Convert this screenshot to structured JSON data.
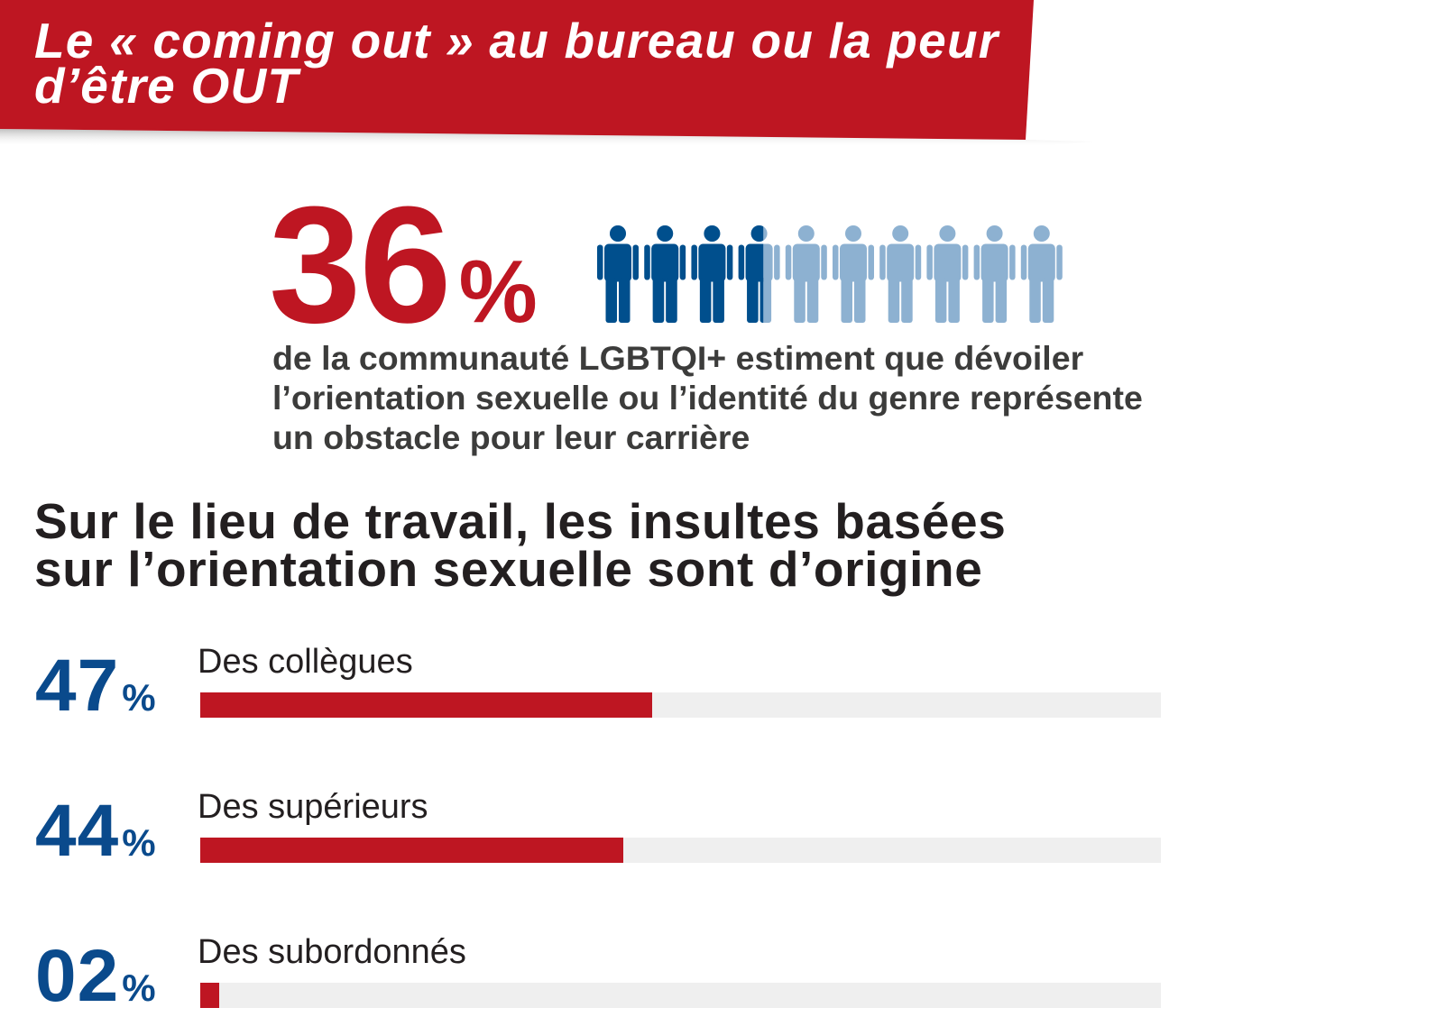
{
  "header": {
    "title_lines": [
      "Le « coming out » au bureau ou la peur",
      "d’être OUT"
    ]
  },
  "stat": {
    "value": "36",
    "unit": "%",
    "text_lines": [
      "de la communauté LGBTQI+ estiment que dévoiler",
      "l’orientation sexuelle ou l’identité du genre représente",
      "un obstacle pour leur carrière"
    ],
    "pictogram": {
      "icon": "person-icon",
      "count": 10,
      "filled_percent": 36
    }
  },
  "chart_data": {
    "type": "bar",
    "orientation": "horizontal",
    "title_lines": [
      "Sur le lieu de travail, les insultes basées",
      "sur l’orientation sexuelle sont d’origine"
    ],
    "categories": [
      "Des collègues",
      "Des supérieurs",
      "Des subordonnés"
    ],
    "values": [
      47,
      44,
      2
    ],
    "value_labels": [
      "47",
      "44",
      "02"
    ],
    "unit": "%",
    "xlim": [
      0,
      100
    ],
    "grid": false
  },
  "colors": {
    "red": "#be1622",
    "blue": "#0a4a8c",
    "pictogram_dark": "#004f8d",
    "pictogram_light": "#8db1d1",
    "track": "#efefef",
    "text_dark": "#231f20",
    "text_body": "#3c3c3b",
    "banner_text": "#ffffff"
  }
}
